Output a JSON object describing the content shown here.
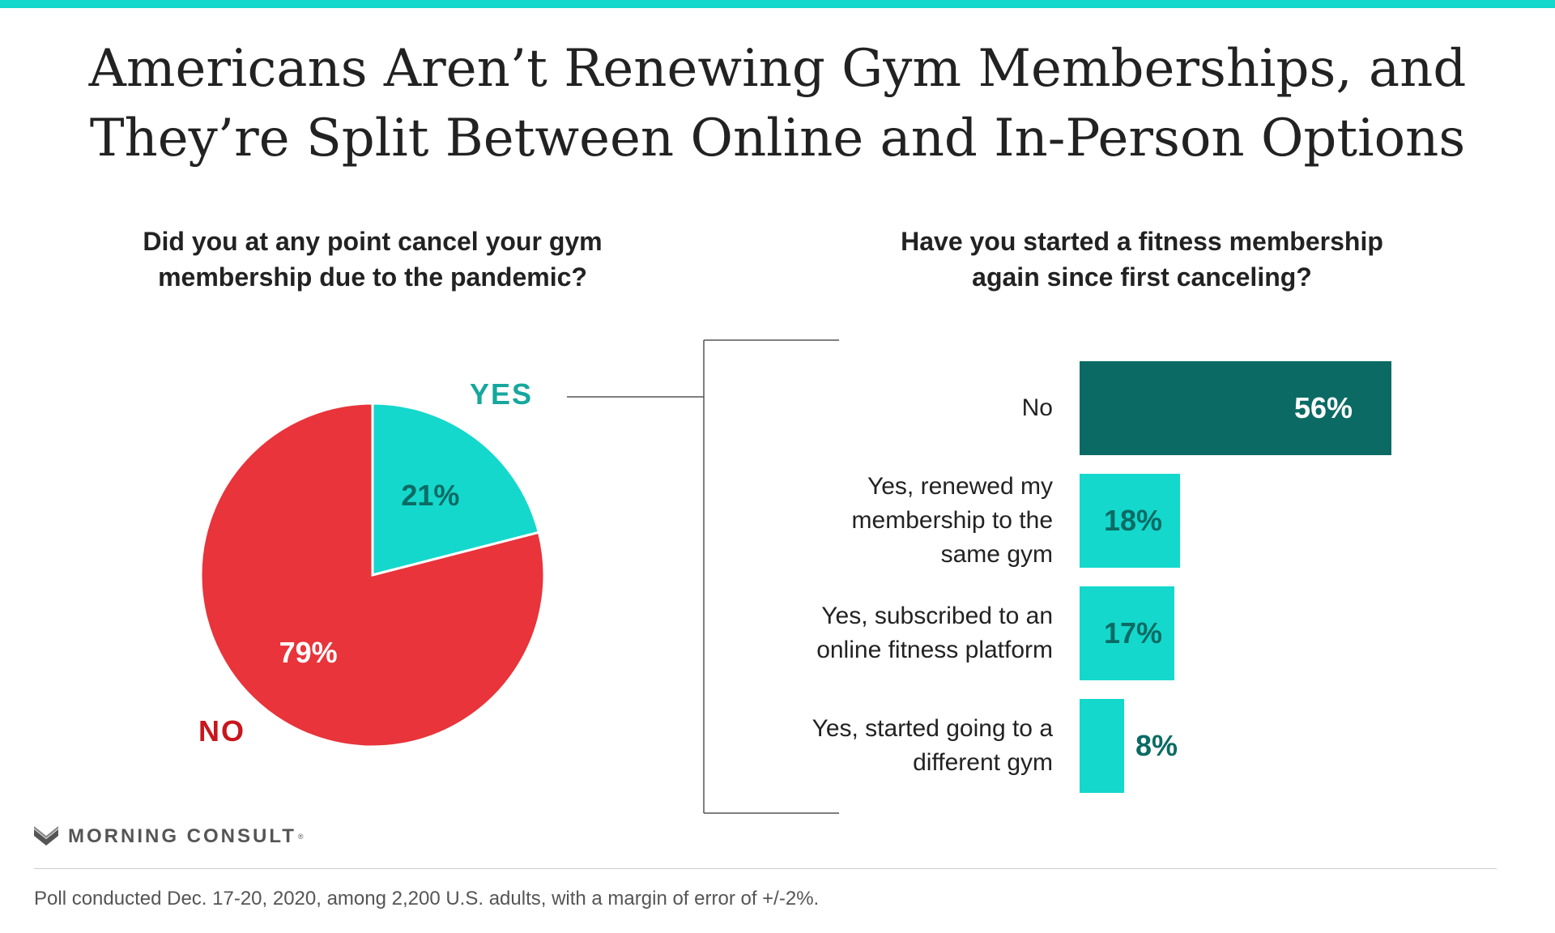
{
  "title": {
    "line1": "Americans Aren’t Renewing Gym Memberships, and",
    "line2": "They’re Split Between Online and In-Person Options"
  },
  "colors": {
    "top_rule": "#14d8cc",
    "teal_light": "#14d8cc",
    "teal_dark": "#0b6b64",
    "red": "#e8343a",
    "red_text": "#c8161d",
    "teal_text": "#16a79e",
    "connector": "#555555"
  },
  "chart_data": [
    {
      "type": "pie",
      "title": "Did you at any point cancel your gym membership due to the pandemic?",
      "title_lines": [
        "Did you at any point cancel your gym",
        "membership due to the pandemic?"
      ],
      "categories": [
        "YES",
        "NO"
      ],
      "values": [
        21,
        79
      ],
      "value_labels": [
        "21%",
        "79%"
      ],
      "colors": [
        "#14d8cc",
        "#e8343a"
      ]
    },
    {
      "type": "bar",
      "orientation": "horizontal",
      "title": "Have you started a fitness membership again since first canceling?",
      "title_lines": [
        "Have you started a fitness membership",
        "again since first canceling?"
      ],
      "categories": [
        "No",
        "Yes, renewed my membership to the same gym",
        "Yes, subscribed to an online fitness platform",
        "Yes, started going to a different gym"
      ],
      "category_lines": [
        [
          "No"
        ],
        [
          "Yes, renewed my",
          "membership to the",
          "same gym"
        ],
        [
          "Yes, subscribed to an",
          "online fitness platform"
        ],
        [
          "Yes, started going to a",
          "different gym"
        ]
      ],
      "values": [
        56,
        18,
        17,
        8
      ],
      "value_labels": [
        "56%",
        "18%",
        "17%",
        "8%"
      ],
      "colors": [
        "#0b6b64",
        "#14d8cc",
        "#14d8cc",
        "#14d8cc"
      ]
    }
  ],
  "brand": {
    "name": "MORNING CONSULT",
    "trademark": "®"
  },
  "footnote": "Poll conducted Dec. 17-20, 2020, among 2,200 U.S. adults, with a margin of error of +/-2%."
}
